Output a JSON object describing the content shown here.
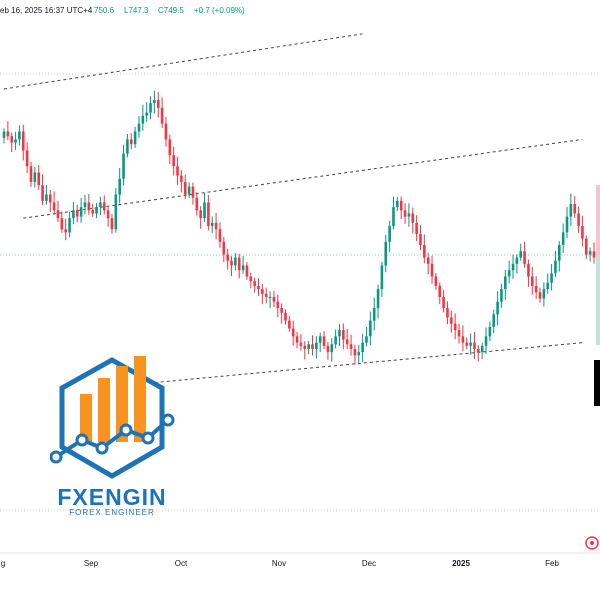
{
  "header": {
    "date_text": "eb 16, 2025 16:37 UTC+4",
    "open_text": "750.6",
    "low_text": "L747.3",
    "close_text": "C749.5",
    "change_text": "+0.7 (+0.09%)"
  },
  "logo": {
    "name": "FXENGIN",
    "tagline": "FOREX ENGINEER",
    "icon": "chart-bars-shield-icon"
  },
  "colors": {
    "up": "#089981",
    "down": "#f23645",
    "logo_blue": "#1c73b8",
    "logo_orange": "#f7931e"
  },
  "chart_data": {
    "type": "candlestick",
    "x_ticks": [
      "g",
      "Sep",
      "Oct",
      "Nov",
      "Dec",
      "2025",
      "Feb"
    ],
    "x_tick_bold": "2025",
    "close": [
      1.0,
      0.97,
      0.93,
      0.95,
      1.0,
      0.88,
      0.78,
      0.68,
      0.74,
      0.66,
      0.56,
      0.6,
      0.55,
      0.5,
      0.45,
      0.38,
      0.36,
      0.45,
      0.5,
      0.46,
      0.52,
      0.55,
      0.5,
      0.48,
      0.52,
      0.55,
      0.5,
      0.45,
      0.38,
      0.6,
      0.7,
      0.86,
      0.95,
      0.92,
      1.0,
      1.05,
      1.1,
      1.12,
      1.18,
      1.2,
      1.15,
      1.05,
      0.95,
      0.85,
      0.78,
      0.72,
      0.68,
      0.6,
      0.65,
      0.58,
      0.5,
      0.45,
      0.55,
      0.4,
      0.42,
      0.38,
      0.3,
      0.22,
      0.18,
      0.15,
      0.2,
      0.12,
      0.15,
      0.08,
      0.05,
      0.02,
      0.0,
      -0.03,
      -0.05,
      -0.05,
      -0.08,
      -0.12,
      -0.15,
      -0.2,
      -0.25,
      -0.3,
      -0.34,
      -0.36,
      -0.38,
      -0.35,
      -0.38,
      -0.34,
      -0.3,
      -0.36,
      -0.4,
      -0.35,
      -0.3,
      -0.26,
      -0.32,
      -0.35,
      -0.38,
      -0.42,
      -0.4,
      -0.34,
      -0.3,
      -0.2,
      -0.12,
      0.0,
      0.15,
      0.3,
      0.4,
      0.52,
      0.56,
      0.5,
      0.46,
      0.48,
      0.42,
      0.35,
      0.28,
      0.2,
      0.16,
      0.08,
      0.02,
      -0.05,
      -0.12,
      -0.18,
      -0.22,
      -0.26,
      -0.3,
      -0.34,
      -0.36,
      -0.34,
      -0.38,
      -0.4,
      -0.36,
      -0.3,
      -0.24,
      -0.16,
      -0.08,
      0.0,
      0.08,
      0.12,
      0.16,
      0.2,
      0.24,
      0.16,
      0.08,
      0.02,
      -0.02,
      -0.06,
      0.0,
      0.04,
      0.1,
      0.18,
      0.28,
      0.36,
      0.46,
      0.54,
      0.48,
      0.4,
      0.32,
      0.22,
      0.24,
      0.2
    ],
    "ranges": [
      {
        "label": "upper-channel-line",
        "from_idx": 0,
        "to_idx": 93
      },
      {
        "label": "middle-channel-line",
        "from_idx": 0,
        "to_idx": 115
      },
      {
        "label": "lower-channel-line",
        "from_idx": 36,
        "to_idx": 121
      }
    ],
    "grid": "dotted-horizontal",
    "legend": "none"
  }
}
